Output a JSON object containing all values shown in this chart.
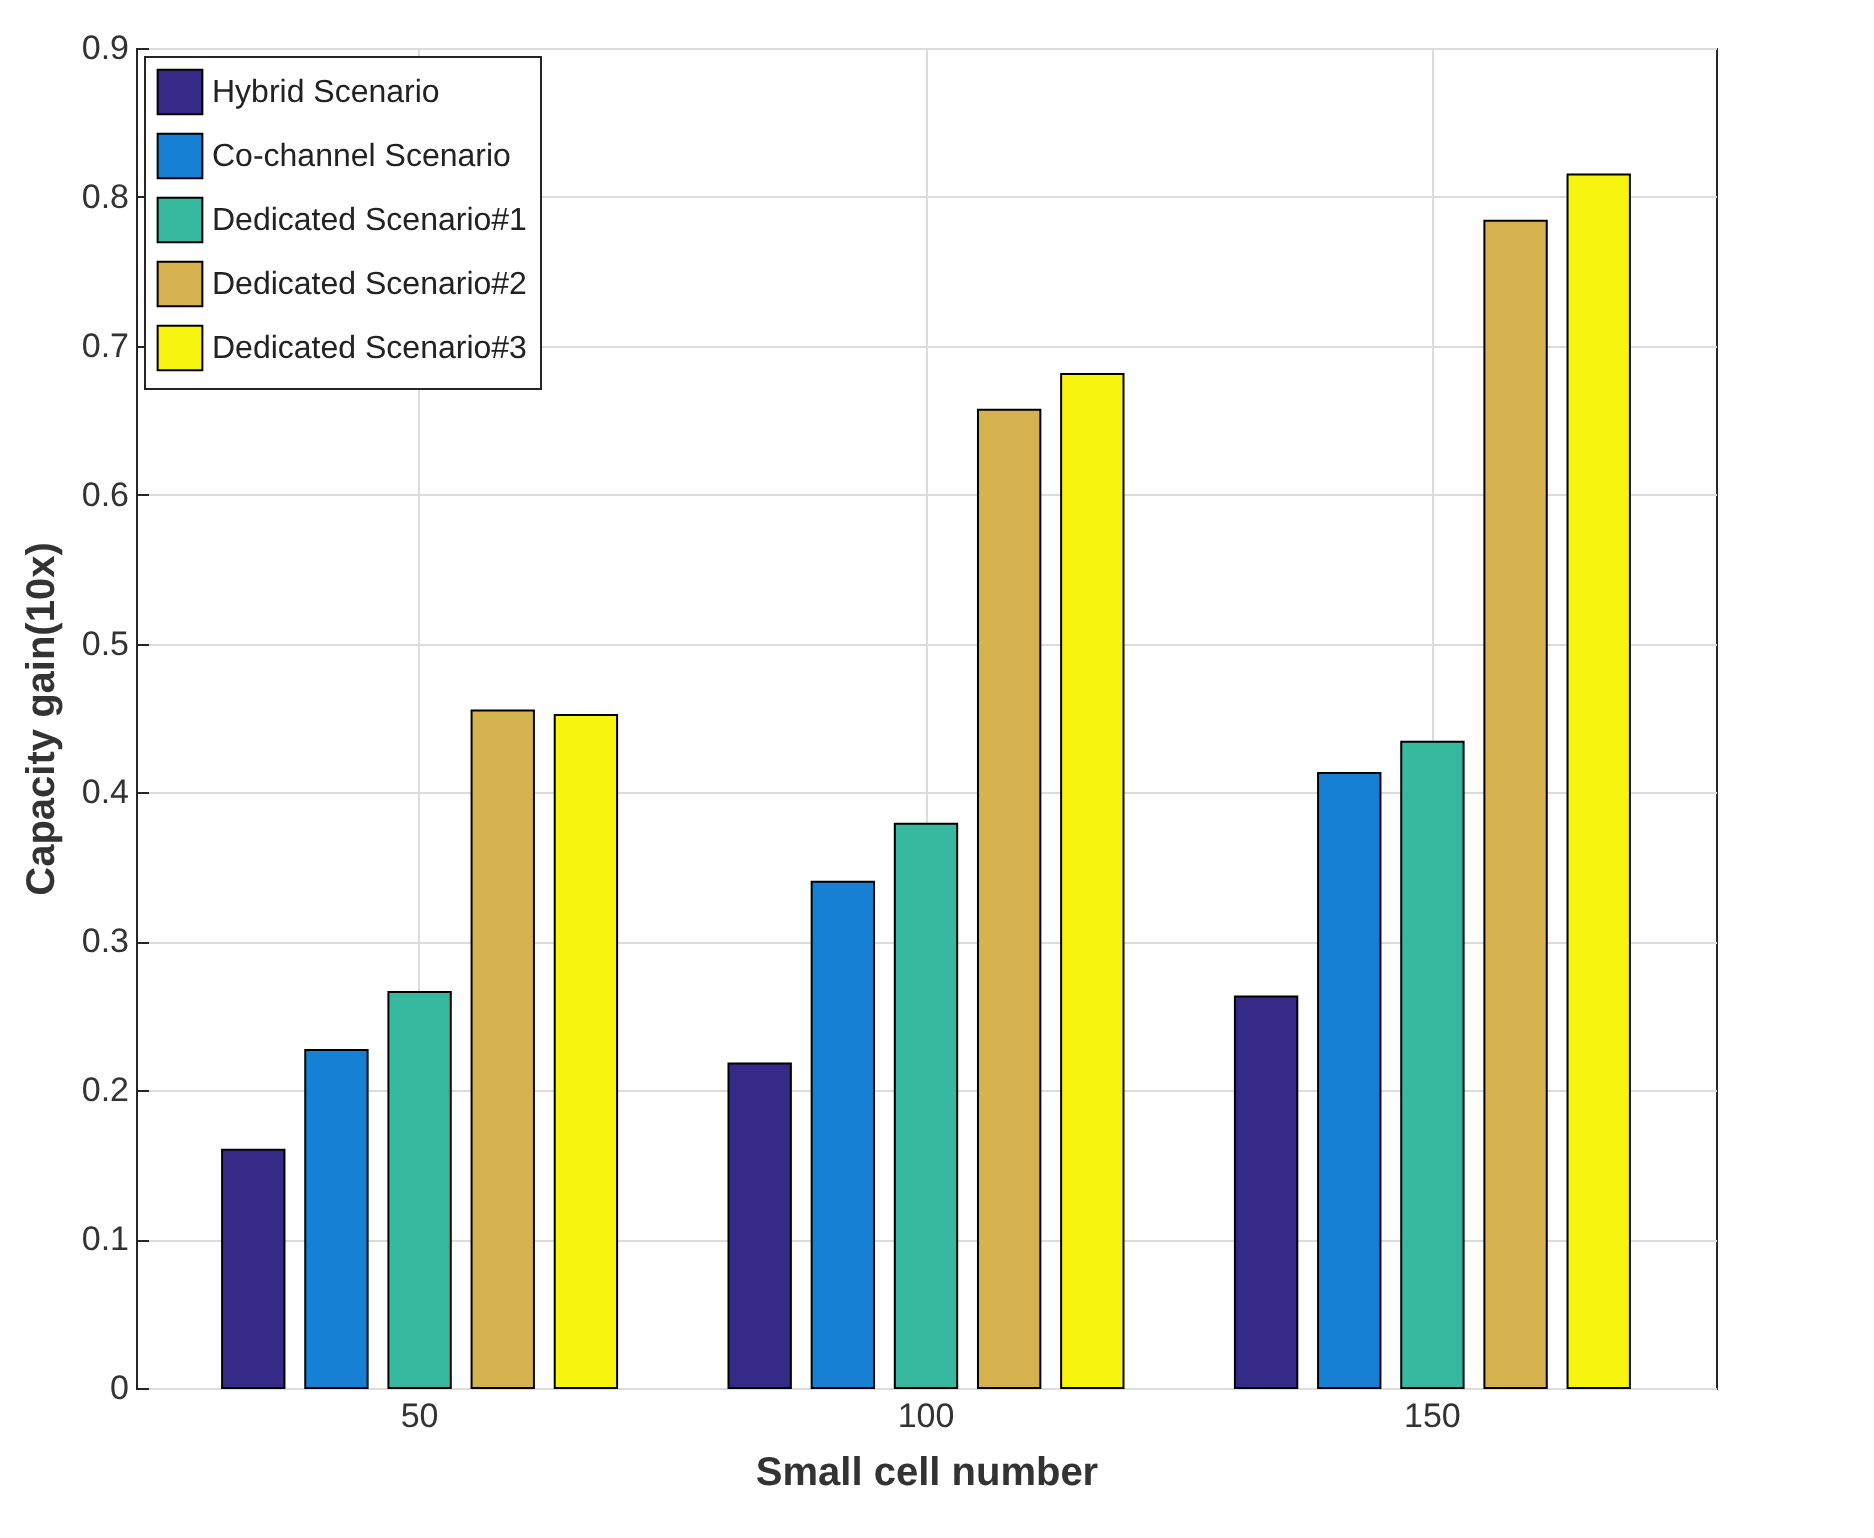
{
  "chart_data": {
    "type": "bar",
    "xlabel": "Small cell number",
    "ylabel": "Capacity gain(10x)",
    "categories": [
      "50",
      "100",
      "150"
    ],
    "series": [
      {
        "name": "Hybrid Scenario",
        "color": "#352a87",
        "values": [
          0.16,
          0.218,
          0.263
        ]
      },
      {
        "name": "Co-channel Scenario",
        "color": "#1580d4",
        "values": [
          0.227,
          0.34,
          0.413
        ]
      },
      {
        "name": "Dedicated Scenario#1",
        "color": "#36b99e",
        "values": [
          0.266,
          0.379,
          0.434
        ]
      },
      {
        "name": "Dedicated Scenario#2",
        "color": "#d6b24f",
        "values": [
          0.455,
          0.657,
          0.784
        ]
      },
      {
        "name": "Dedicated Scenario#3",
        "color": "#f7f510",
        "values": [
          0.452,
          0.681,
          0.815
        ]
      }
    ],
    "ylim": [
      0,
      0.9
    ],
    "yticks": [
      0,
      0.1,
      0.2,
      0.3,
      0.4,
      0.5,
      0.6,
      0.7,
      0.8,
      0.9
    ],
    "grid": true,
    "legend": "top left"
  }
}
